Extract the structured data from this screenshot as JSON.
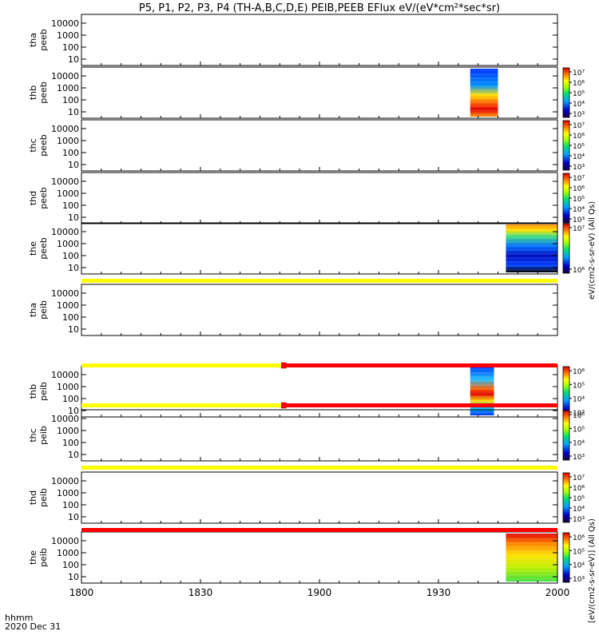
{
  "page": {
    "title": "P5, P1, P2, P3, P4 (TH-A,B,C,D,E) PEIB,PEEB EFlux eV/(eV*cm²*sec*sr)",
    "xaxis_label_line1": "hhmm",
    "xaxis_label_line2": "2020 Dec 31",
    "colorbar_label_upper": "eV/(cm2-s-sr-eV) (All Qs)",
    "colorbar_label_lower": "[eV/(cm2-s-sr-eV)] (All Qs)"
  },
  "chart_data": {
    "type": "heatmap",
    "x_ticks": [
      "1800",
      "1830",
      "1900",
      "1930",
      "2000"
    ],
    "x_range_hhmm": [
      "1800",
      "2000"
    ],
    "y_ticks": [
      "10000",
      "1000",
      "100",
      "10"
    ],
    "y_scale": "log",
    "panels": [
      {
        "label1": "tha",
        "label2": "peeb",
        "spectra": [],
        "colorbar": null
      },
      {
        "label1": "thb",
        "label2": "peeb",
        "spectra": [
          {
            "start": "1938",
            "end": "1945",
            "style": "thb_peeb"
          }
        ],
        "colorbar": {
          "ticks": [
            "10⁷",
            "10⁶",
            "10⁵",
            "10⁴",
            "10³"
          ]
        }
      },
      {
        "label1": "thc",
        "label2": "peeb",
        "spectra": [],
        "colorbar": {
          "ticks": [
            "10⁷",
            "10⁶",
            "10⁵",
            "10⁴",
            "10³"
          ]
        }
      },
      {
        "label1": "thd",
        "label2": "peeb",
        "spectra": [],
        "colorbar": {
          "ticks": [
            "10⁷",
            "10⁶",
            "10⁵",
            "10⁴",
            "10³"
          ]
        }
      },
      {
        "label1": "the",
        "label2": "peeb",
        "spectra": [
          {
            "start": "1947",
            "end": "2000",
            "style": "the_peeb"
          }
        ],
        "colorbar": {
          "ticks": [
            "10⁷",
            "10⁶"
          ]
        }
      },
      {
        "label1": "tha",
        "label2": "peib",
        "spectra": [],
        "colorbar": null
      },
      {
        "label1": "thb",
        "label2": "peib",
        "spectra": [
          {
            "start": "1938",
            "end": "1944",
            "style": "thb_peib"
          }
        ],
        "colorbar": {
          "ticks": [
            "10⁶",
            "10⁵",
            "10⁴",
            "10³"
          ]
        }
      },
      {
        "label1": "thc",
        "label2": "peib",
        "spectra": [],
        "colorbar": {
          "ticks": [
            "10⁶",
            "10⁵",
            "10⁴",
            "10³"
          ]
        }
      },
      {
        "label1": "thd",
        "label2": "peib",
        "spectra": [],
        "colorbar": {
          "ticks": [
            "10⁷",
            "10⁶",
            "10⁵",
            "10⁴",
            "10³"
          ]
        }
      },
      {
        "label1": "the",
        "label2": "peib",
        "spectra": [
          {
            "start": "1947",
            "end": "2000",
            "style": "the_peib"
          }
        ],
        "colorbar": {
          "ticks": [
            "10⁶",
            "10⁵",
            "10⁴",
            "10³"
          ]
        }
      }
    ],
    "mode_bars": [
      {
        "after_panel": 5,
        "segments": [
          {
            "start": "1800",
            "end": "2000",
            "color": "#ffff00"
          }
        ]
      },
      {
        "after_panel": 6,
        "segments": [
          {
            "start": "1800",
            "end": "1851",
            "color": "#ffff00"
          },
          {
            "start": "1851",
            "end": "2000",
            "color": "#ff0000"
          }
        ]
      },
      {
        "after_panel": 7,
        "segments": [
          {
            "start": "1800",
            "end": "1851",
            "color": "#ffff00"
          },
          {
            "start": "1851",
            "end": "2000",
            "color": "#ff0000"
          }
        ]
      },
      {
        "after_panel": 8,
        "segments": [
          {
            "start": "1800",
            "end": "2000",
            "color": "#ffff00"
          }
        ]
      },
      {
        "after_panel": 9,
        "segments": [
          {
            "start": "1800",
            "end": "2000",
            "color": "#ff0000"
          }
        ]
      }
    ]
  }
}
